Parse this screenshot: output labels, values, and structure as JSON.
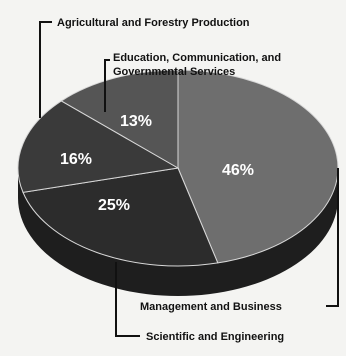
{
  "chart_data": {
    "type": "pie",
    "slices": [
      {
        "label": "Management and Business",
        "value": 46,
        "display": "46%",
        "color": "#6e6e6e"
      },
      {
        "label": "Scientific and Engineering",
        "value": 25,
        "display": "25%",
        "color": "#2c2c2c"
      },
      {
        "label": "Agricultural and Forestry Production",
        "value": 16,
        "display": "16%",
        "color": "#3a3a3a"
      },
      {
        "label": "Education, Communication, and Governmental Services",
        "value": 13,
        "display": "13%",
        "color": "#555555"
      }
    ],
    "labels": {
      "agri": "Agricultural and Forestry Production",
      "edu_line1": "Education, Communication, and",
      "edu_line2": "Governmental Services",
      "mgmt": "Management and Business",
      "sci": "Scientific and Engineering"
    },
    "three_d": true
  }
}
